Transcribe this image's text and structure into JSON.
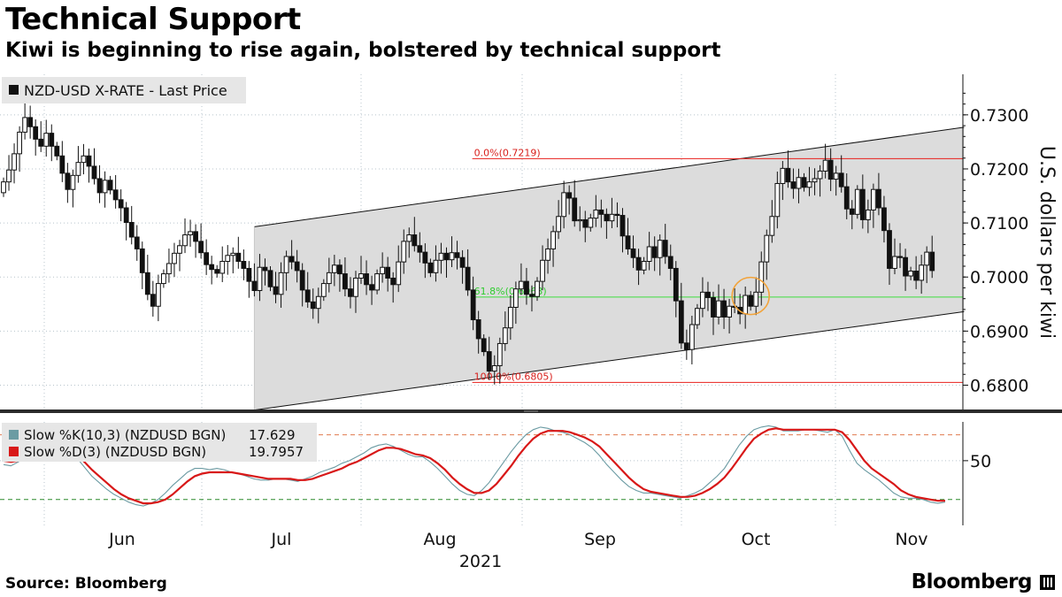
{
  "title": "Technical Support",
  "subtitle": "Kiwi is beginning to rise again, bolstered by technical support",
  "source": "Source: Bloomberg",
  "brand": "Bloomberg",
  "chart_data": [
    {
      "type": "candlestick",
      "legend": [
        {
          "name": "NZD-USD X-RATE - Last Price",
          "color": "#111111"
        }
      ],
      "ylabel": "U.S. dollars per kiwi",
      "ylim": [
        0.6755,
        0.7375
      ],
      "y_ticks": [
        "0.6800",
        "0.6900",
        "0.7000",
        "0.7100",
        "0.7200",
        "0.7300"
      ],
      "x_ticks": [
        "Jun",
        "Jul",
        "Aug",
        "Sep",
        "Oct",
        "Nov"
      ],
      "year_label": "2021",
      "fib_levels": [
        {
          "label": "0.0%(0.7219)",
          "value": 0.7219,
          "color": "#e8201c"
        },
        {
          "label": "61.8%(0.6963)",
          "value": 0.6963,
          "color": "#3fdd3f"
        },
        {
          "label": "100.0%(0.6805)",
          "value": 0.6805,
          "color": "#e8201c"
        }
      ],
      "channel": {
        "start_index": 47,
        "end_index": 180,
        "upper": [
          0.7093,
          0.7277
        ],
        "lower": [
          0.6754,
          0.6936
        ],
        "fill": "#dcdcdc"
      },
      "highlight": {
        "index": 140,
        "value": 0.6965,
        "color": "#f2a33a"
      },
      "closes": [
        0.7176,
        0.7198,
        0.7228,
        0.7268,
        0.7295,
        0.7278,
        0.7255,
        0.7242,
        0.7266,
        0.7242,
        0.7224,
        0.7192,
        0.7162,
        0.7188,
        0.7212,
        0.7224,
        0.7205,
        0.7182,
        0.7156,
        0.7179,
        0.7161,
        0.7143,
        0.7128,
        0.7101,
        0.7074,
        0.7052,
        0.7008,
        0.6968,
        0.6946,
        0.6988,
        0.7006,
        0.7025,
        0.7044,
        0.7058,
        0.7078,
        0.7084,
        0.7066,
        0.7045,
        0.7023,
        0.7014,
        0.7007,
        0.7029,
        0.704,
        0.7044,
        0.7029,
        0.7016,
        0.6992,
        0.6975,
        0.7018,
        0.7012,
        0.6982,
        0.6968,
        0.7008,
        0.7038,
        0.7028,
        0.7012,
        0.6976,
        0.6954,
        0.6942,
        0.6964,
        0.6988,
        0.7008,
        0.7022,
        0.7006,
        0.6978,
        0.6964,
        0.6998,
        0.7006,
        0.6986,
        0.6976,
        0.7006,
        0.7018,
        0.6998,
        0.6986,
        0.7028,
        0.7066,
        0.7078,
        0.7058,
        0.7046,
        0.7026,
        0.7008,
        0.7031,
        0.7044,
        0.7032,
        0.7045,
        0.7036,
        0.7018,
        0.6976,
        0.6921,
        0.6886,
        0.6862,
        0.6826,
        0.6836,
        0.6877,
        0.6906,
        0.6944,
        0.6978,
        0.6992,
        0.6968,
        0.6964,
        0.6992,
        0.7031,
        0.7052,
        0.7084,
        0.7112,
        0.7156,
        0.7146,
        0.7104,
        0.7106,
        0.7092,
        0.7109,
        0.7124,
        0.7116,
        0.7104,
        0.7116,
        0.7114,
        0.7076,
        0.7052,
        0.7036,
        0.7013,
        0.7029,
        0.7056,
        0.7036,
        0.7068,
        0.7038,
        0.7016,
        0.6956,
        0.6878,
        0.6866,
        0.6912,
        0.6942,
        0.6972,
        0.6962,
        0.6926,
        0.6956,
        0.6926,
        0.6946,
        0.6944,
        0.6932,
        0.6966,
        0.6946,
        0.6972,
        0.7028,
        0.7077,
        0.7112,
        0.7173,
        0.7201,
        0.7176,
        0.7164,
        0.7184,
        0.7166,
        0.7176,
        0.7182,
        0.7196,
        0.7216,
        0.7181,
        0.7192,
        0.7167,
        0.7126,
        0.7116,
        0.7162,
        0.7106,
        0.7124,
        0.7162,
        0.7128,
        0.7086,
        0.7016,
        0.7038,
        0.7036,
        0.7002,
        0.7011,
        0.6994,
        0.7022,
        0.7046,
        0.7012
      ],
      "opens": [
        0.7156,
        0.7176,
        0.7198,
        0.7228,
        0.7268,
        0.7295,
        0.7278,
        0.7255,
        0.7242,
        0.7266,
        0.7242,
        0.7224,
        0.7192,
        0.7162,
        0.7188,
        0.7212,
        0.7224,
        0.7205,
        0.7182,
        0.7156,
        0.7179,
        0.7161,
        0.7143,
        0.7128,
        0.7101,
        0.7074,
        0.7052,
        0.7008,
        0.6968,
        0.6946,
        0.6988,
        0.7006,
        0.7025,
        0.7044,
        0.7058,
        0.7078,
        0.7084,
        0.7066,
        0.7045,
        0.7023,
        0.7014,
        0.7007,
        0.7029,
        0.704,
        0.7044,
        0.7029,
        0.7016,
        0.6992,
        0.6975,
        0.7018,
        0.7012,
        0.6982,
        0.6968,
        0.7008,
        0.7038,
        0.7028,
        0.7012,
        0.6976,
        0.6954,
        0.6942,
        0.6964,
        0.6988,
        0.7008,
        0.7022,
        0.7006,
        0.6978,
        0.6964,
        0.6998,
        0.7006,
        0.6986,
        0.6976,
        0.7006,
        0.7018,
        0.6998,
        0.6986,
        0.7028,
        0.7066,
        0.7078,
        0.7058,
        0.7046,
        0.7026,
        0.7008,
        0.7031,
        0.7044,
        0.7032,
        0.7045,
        0.7036,
        0.7018,
        0.6976,
        0.6921,
        0.6886,
        0.6862,
        0.6826,
        0.6836,
        0.6877,
        0.6906,
        0.6944,
        0.6978,
        0.6992,
        0.6968,
        0.6964,
        0.6992,
        0.7031,
        0.7052,
        0.7084,
        0.7112,
        0.7156,
        0.7146,
        0.7104,
        0.7106,
        0.7092,
        0.7109,
        0.7124,
        0.7116,
        0.7104,
        0.7116,
        0.7114,
        0.7076,
        0.7052,
        0.7036,
        0.7013,
        0.7029,
        0.7056,
        0.7036,
        0.7068,
        0.7038,
        0.7016,
        0.6956,
        0.6878,
        0.6866,
        0.6912,
        0.6942,
        0.6972,
        0.6962,
        0.6926,
        0.6956,
        0.6926,
        0.6946,
        0.6944,
        0.6932,
        0.6966,
        0.6946,
        0.6972,
        0.7028,
        0.7077,
        0.7112,
        0.7173,
        0.7201,
        0.7176,
        0.7164,
        0.7184,
        0.7166,
        0.7176,
        0.7182,
        0.7196,
        0.7216,
        0.7181,
        0.7192,
        0.7167,
        0.7126,
        0.7116,
        0.7162,
        0.7106,
        0.7124,
        0.7162,
        0.7128,
        0.7086,
        0.7016,
        0.7038,
        0.7036,
        0.7002,
        0.7011,
        0.6994,
        0.7022,
        0.7046
      ]
    },
    {
      "type": "line",
      "series": [
        {
          "name": "Slow %K(10,3) (NZDUSD BGN)",
          "last": "17.629",
          "color": "#6b9ba3",
          "values": [
            47,
            46,
            49,
            53,
            56,
            60,
            62,
            63,
            61,
            58,
            52,
            45,
            38,
            33,
            28,
            24,
            21,
            18,
            16,
            15,
            17,
            20,
            25,
            31,
            36,
            41,
            44,
            44,
            43,
            44,
            43,
            41,
            40,
            38,
            36,
            35,
            35,
            36,
            36,
            35,
            34,
            36,
            38,
            41,
            43,
            45,
            48,
            50,
            53,
            56,
            60,
            62,
            63,
            61,
            58,
            55,
            53,
            53,
            49,
            44,
            38,
            32,
            27,
            24,
            23,
            27,
            33,
            41,
            49,
            57,
            64,
            70,
            74,
            76,
            75,
            73,
            72,
            70,
            67,
            64,
            60,
            54,
            47,
            41,
            35,
            30,
            27,
            25,
            25,
            24,
            23,
            22,
            21,
            23,
            25,
            28,
            33,
            38,
            44,
            53,
            62,
            69,
            74,
            76,
            77,
            76,
            73,
            73,
            73,
            74,
            74,
            73,
            72,
            74,
            69,
            58,
            48,
            43,
            39,
            35,
            30,
            25,
            22,
            21,
            21,
            20,
            18,
            17,
            18
          ]
        },
        {
          "name": "Slow %D(3) (NZDUSD BGN)",
          "last": "19.7957",
          "color": "#d81818",
          "values": [
            50,
            49,
            50,
            52,
            54,
            56,
            58,
            59,
            59,
            57,
            54,
            49,
            43,
            38,
            33,
            28,
            24,
            21,
            19,
            17,
            17,
            18,
            20,
            24,
            29,
            34,
            38,
            40,
            41,
            41,
            41,
            41,
            40,
            39,
            38,
            37,
            36,
            36,
            36,
            36,
            35,
            35,
            36,
            38,
            40,
            42,
            44,
            47,
            49,
            52,
            55,
            58,
            60,
            60,
            59,
            57,
            55,
            54,
            52,
            48,
            43,
            37,
            32,
            28,
            25,
            25,
            27,
            32,
            39,
            46,
            54,
            61,
            67,
            71,
            73,
            73,
            73,
            72,
            70,
            68,
            65,
            61,
            55,
            49,
            43,
            37,
            32,
            28,
            26,
            25,
            24,
            23,
            22,
            22,
            23,
            25,
            28,
            32,
            37,
            44,
            52,
            60,
            67,
            71,
            74,
            75,
            74,
            74,
            74,
            74,
            74,
            74,
            74,
            74,
            72,
            66,
            58,
            50,
            44,
            40,
            36,
            32,
            27,
            24,
            22,
            21,
            20,
            19,
            19
          ]
        }
      ],
      "ylim": [
        0,
        80
      ],
      "y_ticks": [
        "50"
      ],
      "levels": [
        {
          "value": 70,
          "color": "#e07a4f"
        },
        {
          "value": 20,
          "color": "#2a8a2a"
        }
      ],
      "grid_value": 50
    }
  ]
}
